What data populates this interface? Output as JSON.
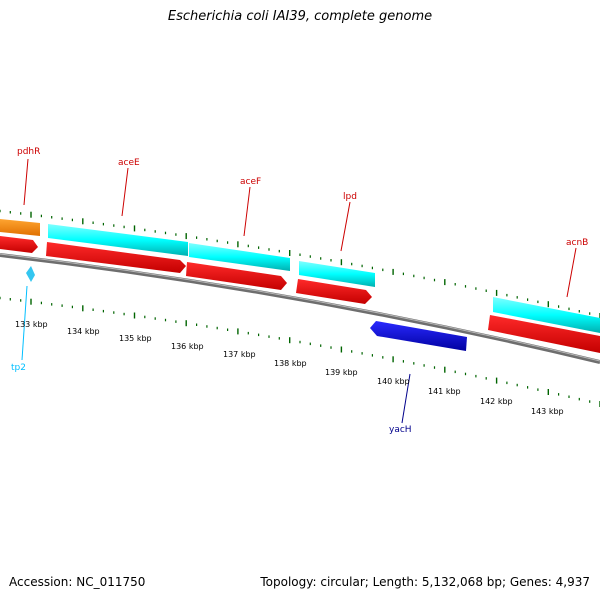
{
  "header": {
    "title": "Escherichia coli IAI39, complete genome"
  },
  "footer": {
    "accession": "Accession: NC_011750",
    "summary": "Topology: circular; Length: 5,132,068 bp; Genes: 4,937"
  },
  "scale": {
    "tick_labels": [
      "133 kbp",
      "134 kbp",
      "135 kbp",
      "136 kbp",
      "137 kbp",
      "138 kbp",
      "139 kbp",
      "140 kbp",
      "141 kbp",
      "142 kbp",
      "143 kbp"
    ]
  },
  "genes": {
    "pdhR": "pdhR",
    "aceE": "aceE",
    "aceF": "aceF",
    "lpd": "lpd",
    "acnB": "acnB",
    "tp2": "tp2",
    "yacH": "yacH"
  },
  "colors": {
    "forward_gene": "#ff0000",
    "forward_cds": "#00ffff",
    "orange_feature": "#ff8c00",
    "reverse_gene": "#0000ff",
    "small_feature": "#00bfff",
    "backbone": "#808080",
    "tick": "#006400",
    "label_red": "#cc0000",
    "label_blue": "#00008b",
    "label_cyan": "#00bfff"
  }
}
